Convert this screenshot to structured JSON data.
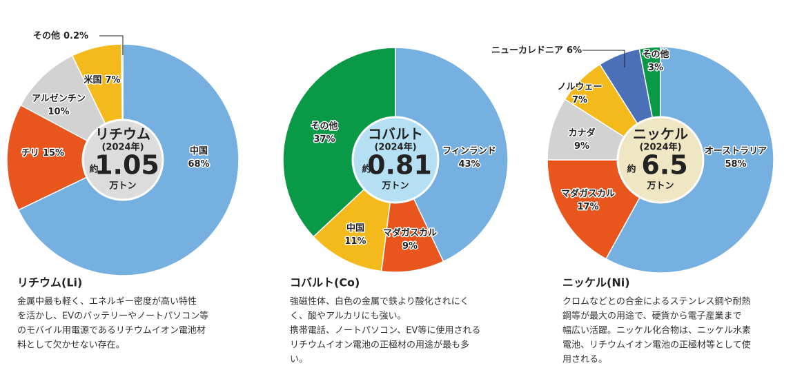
{
  "chart_data": [
    {
      "type": "pie",
      "title": "リチウム(Li)",
      "center": {
        "name": "リチウム",
        "year": "(2024年)",
        "prefix": "約",
        "amount": 1.05,
        "unit": "万トン",
        "color": "#dcdcdc"
      },
      "categories": [
        "中国",
        "チリ",
        "アルゼンチン",
        "米国",
        "その他"
      ],
      "values": [
        68,
        15,
        10,
        7,
        0.2
      ],
      "value_labels": [
        "68%",
        "15%",
        "10%",
        "7%",
        "0.2%"
      ],
      "colors": [
        "#76b0e0",
        "#e8561e",
        "#d2d2d2",
        "#f4b91a",
        "#f4b91a"
      ],
      "description": [
        "金属中最も軽く、エネルギー密度が高い特性",
        "を活かし、EVのバッテリーやノートパソコン等",
        "のモバイル用電源であるリチウムイオン電池材",
        "料として欠かせない存在。"
      ]
    },
    {
      "type": "pie",
      "title": "コバルト(Co)",
      "center": {
        "name": "コバルト",
        "year": "(2024年)",
        "prefix": "約",
        "amount": 0.81,
        "unit": "万トン",
        "color": "#b5e0f4"
      },
      "categories": [
        "フィンランド",
        "マダガスカル",
        "中国",
        "その他"
      ],
      "values": [
        43,
        9,
        11,
        37
      ],
      "value_labels": [
        "43%",
        "9%",
        "11%",
        "37%"
      ],
      "colors": [
        "#76b0e0",
        "#e8561e",
        "#f4b91a",
        "#0a9a47"
      ],
      "description": [
        "強磁性体、白色の金属で鉄より酸化されにく",
        "く、酸やアルカリにも強い。",
        "携帯電話、ノートパソコン、EV等に使用される",
        "リチウムイオン電池の正極材の用途が最も多",
        "い。"
      ]
    },
    {
      "type": "pie",
      "title": "ニッケル(Ni)",
      "center": {
        "name": "ニッケル",
        "year": "(2024年)",
        "prefix": "約",
        "amount": 6.5,
        "unit": "万トン",
        "color": "#efe6c4"
      },
      "categories": [
        "オーストラリア",
        "マダガスカル",
        "カナダ",
        "ノルウェー",
        "ニューカレドニア",
        "その他"
      ],
      "values": [
        58,
        17,
        9,
        7,
        6,
        3
      ],
      "value_labels": [
        "58%",
        "17%",
        "9%",
        "7%",
        "6%",
        "3%"
      ],
      "colors": [
        "#76b0e0",
        "#e8561e",
        "#d2d2d2",
        "#f4b91a",
        "#4a70b8",
        "#0a9a47"
      ],
      "description": [
        "クロムなどとの合金によるステンレス鋼や耐熱",
        "鋼等が最大の用途で、硬貨から電子産業まで",
        "幅広い活躍。ニッケル化合物は、ニッケル水素",
        "電池、リチウムイオン電池の正極材等として使",
        "用される。"
      ]
    }
  ]
}
